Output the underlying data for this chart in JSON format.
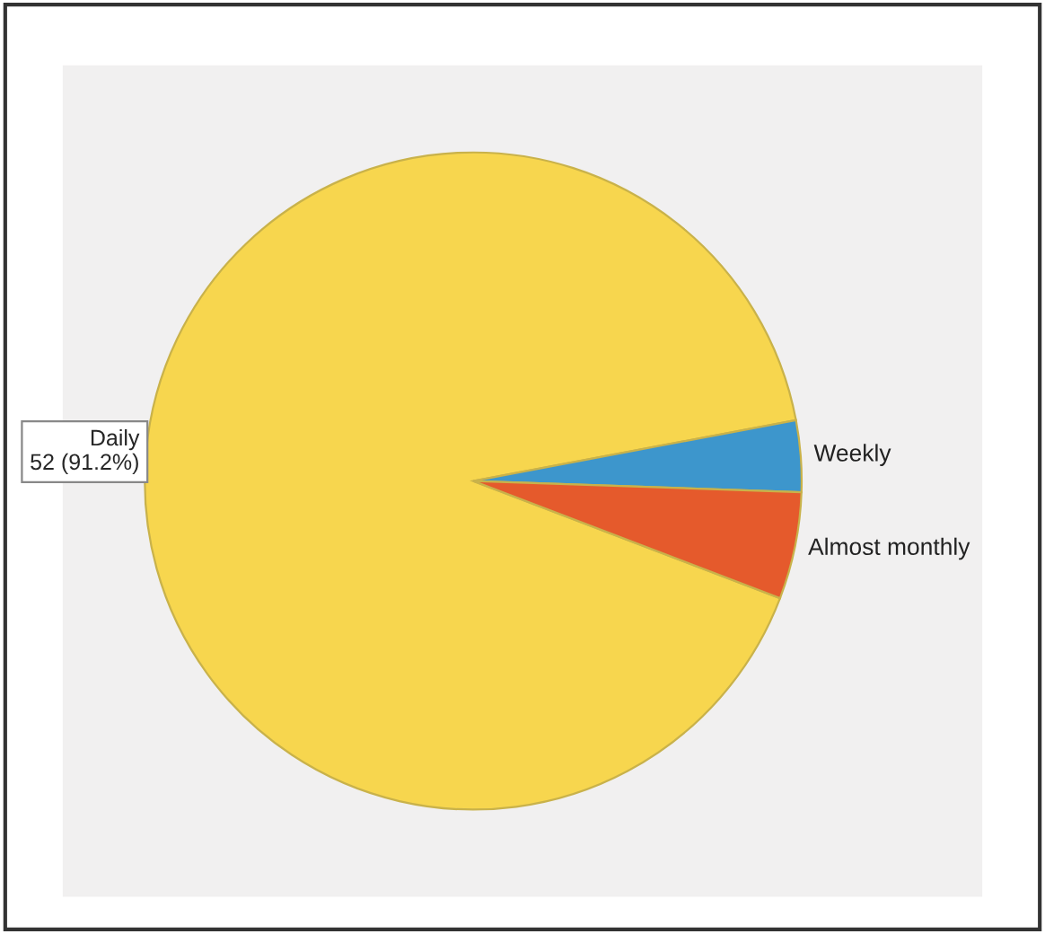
{
  "chart_data": {
    "type": "pie",
    "categories": [
      "Daily",
      "Weekly",
      "Almost monthly"
    ],
    "values": [
      52,
      2,
      3
    ],
    "value_labels": [
      "52 (91.2%)",
      null,
      null
    ],
    "colors": [
      "#f7d64e",
      "#3d96cc",
      "#e55a2c"
    ]
  }
}
